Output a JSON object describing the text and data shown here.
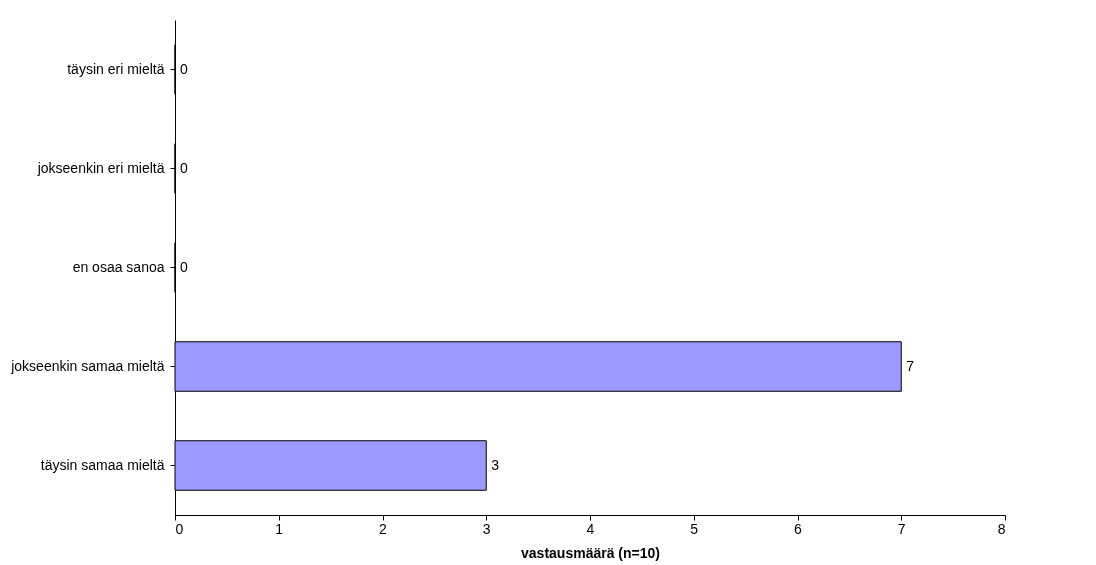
{
  "chart_data": {
    "type": "bar",
    "orientation": "horizontal",
    "xlabel": "vastausmäärä (n=10)",
    "categories": [
      "täysin eri mieltä",
      "jokseenkin eri mieltä",
      "en osaa sanoa",
      "jokseenkin samaa mieltä",
      "täysin samaa mieltä"
    ],
    "values": [
      0,
      0,
      0,
      7,
      3
    ],
    "color": "#9999ff",
    "xlim": [
      0,
      8
    ],
    "xticks": [
      0,
      1,
      2,
      3,
      4,
      5,
      6,
      7,
      8
    ],
    "grid": false,
    "data_labels": true
  }
}
